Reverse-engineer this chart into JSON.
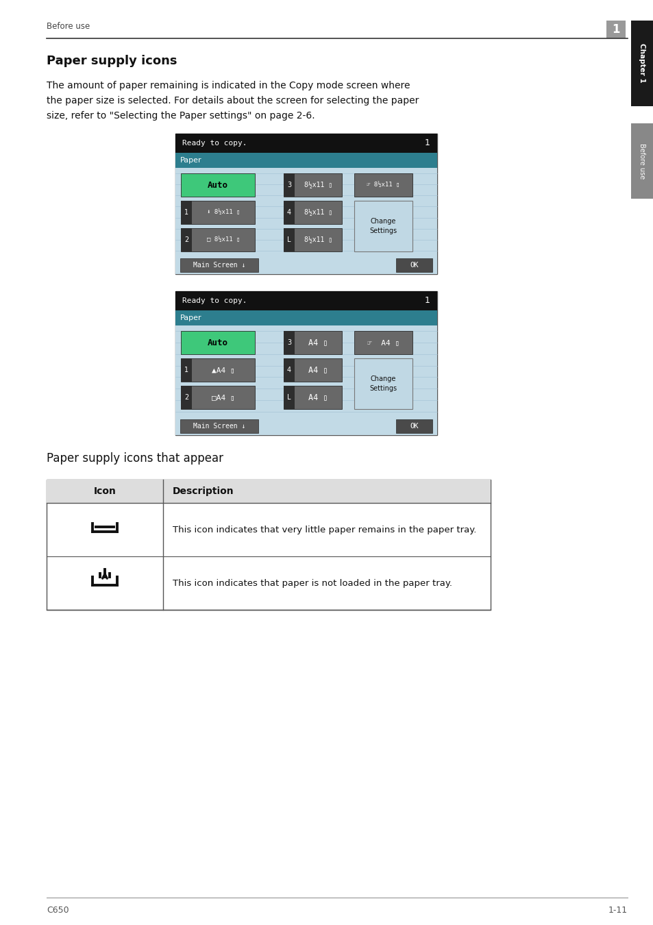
{
  "page_bg": "#ffffff",
  "header_text": "Before use",
  "header_num": "1",
  "tab_label_top": "Chapter 1",
  "tab_label_bottom": "Before use",
  "title": "Paper supply icons",
  "body_line1": "The amount of paper remaining is indicated in the Copy mode screen where",
  "body_line2": "the paper size is selected. For details about the screen for selecting the paper",
  "body_line3": "size, refer to \"Selecting the Paper settings\" on page 2-6.",
  "screen1_status": "Ready to copy.",
  "screen1_num": "1",
  "screen1_paper": "Paper",
  "screen2_status": "Ready to copy.",
  "screen2_num": "1",
  "screen2_paper": "Paper",
  "table_header_icon": "Icon",
  "table_header_desc": "Description",
  "table_row1_desc": "This icon indicates that very little paper remains in the paper tray.",
  "table_row2_desc": "This icon indicates that paper is not loaded in the paper tray.",
  "section_title": "Paper supply icons that appear",
  "footer_left": "C650",
  "footer_right": "1-11",
  "screen_bg_light": "#c2dae6",
  "screen_black": "#111111",
  "screen_teal": "#2d7e8e",
  "screen_btn_gray": "#686868",
  "screen_btn_dark": "#383838",
  "screen_green": "#3ec87a",
  "screen_white": "#ffffff",
  "screen_line_color": "#a8c8d8",
  "tab_black": "#1a1a1a",
  "tab_gray": "#888888"
}
